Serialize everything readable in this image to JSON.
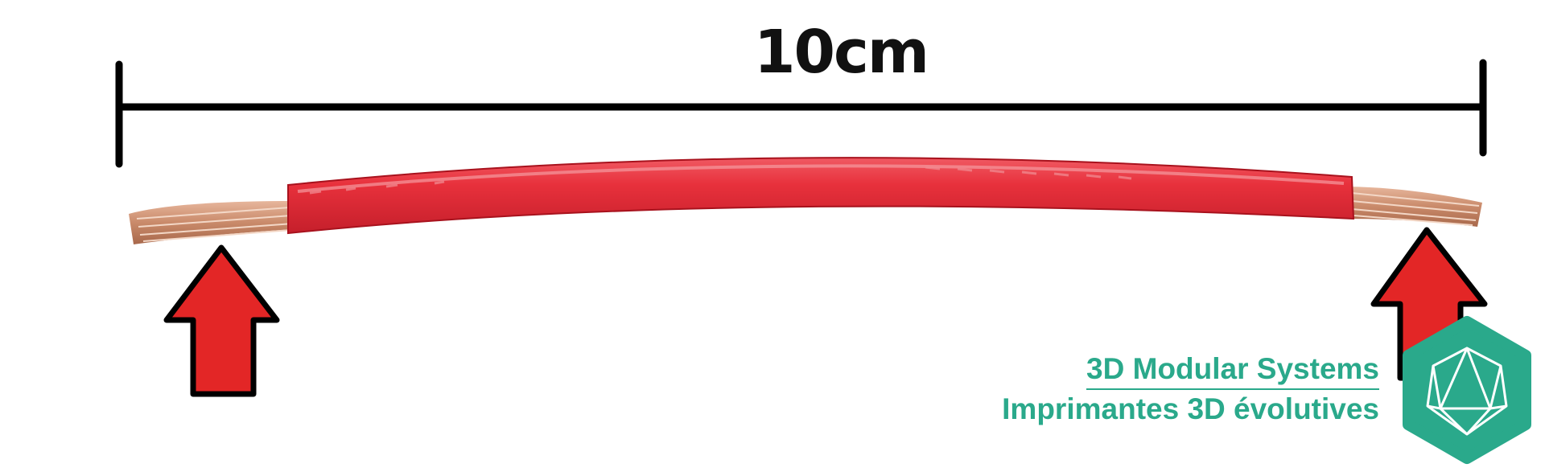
{
  "measurement": {
    "label": "10cm"
  },
  "brand": {
    "name": "3D Modular Systems",
    "tagline": "Imprimantes 3D évolutives",
    "logo_icon": "icosahedron-hexagon-logo",
    "color": "#2aa98b"
  },
  "colors": {
    "wire_insulation": "#e8313c",
    "copper_strands": "#c98a6a",
    "arrow_fill": "#e32626",
    "arrow_outline": "#000000",
    "dimension_line": "#000000"
  },
  "icons": [
    "left-up-arrow-icon",
    "right-up-arrow-icon",
    "logo-icon"
  ]
}
